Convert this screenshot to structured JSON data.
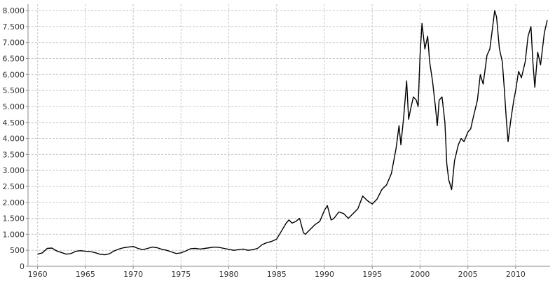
{
  "chart_data": {
    "type": "line",
    "title": "",
    "xlabel": "",
    "ylabel": "",
    "xlim": [
      1959,
      2013.6
    ],
    "ylim": [
      0,
      8200
    ],
    "grid": true,
    "legend": "none",
    "x_ticks": [
      1960,
      1965,
      1970,
      1975,
      1980,
      1985,
      1990,
      1995,
      2000,
      2005,
      2010
    ],
    "x_tick_labels": [
      "1960",
      "1965",
      "1970",
      "1975",
      "1980",
      "1985",
      "1990",
      "1995",
      "2000",
      "2005",
      "2010"
    ],
    "y_ticks": [
      0,
      500,
      1000,
      1500,
      2000,
      2500,
      3000,
      3500,
      4000,
      4500,
      5000,
      5500,
      6000,
      6500,
      7000,
      7500,
      8000
    ],
    "y_tick_labels": [
      "0",
      "500",
      "1.000",
      "1.500",
      "2.000",
      "2.500",
      "3.000",
      "3.500",
      "4.000",
      "4.500",
      "5.000",
      "5.500",
      "6.000",
      "6.500",
      "7.000",
      "7.500",
      "8.000"
    ],
    "line_color": "#000000",
    "series": [
      {
        "x": [
          1960.0,
          1960.5,
          1961.0,
          1961.5,
          1962.0,
          1962.5,
          1963.0,
          1963.5,
          1964.0,
          1964.5,
          1965.0,
          1965.5,
          1966.0,
          1966.5,
          1967.0,
          1967.5,
          1968.0,
          1968.5,
          1969.0,
          1969.5,
          1970.0,
          1970.5,
          1971.0,
          1971.5,
          1972.0,
          1972.5,
          1973.0,
          1973.5,
          1974.0,
          1974.5,
          1975.0,
          1975.5,
          1976.0,
          1976.5,
          1977.0,
          1977.5,
          1978.0,
          1978.5,
          1979.0,
          1979.5,
          1980.0,
          1980.5,
          1981.0,
          1981.5,
          1982.0,
          1982.5,
          1983.0,
          1983.5,
          1984.0,
          1984.5,
          1985.0,
          1985.5,
          1986.0,
          1986.3,
          1986.6,
          1987.0,
          1987.4,
          1987.8,
          1988.0,
          1988.5,
          1989.0,
          1989.5,
          1990.0,
          1990.3,
          1990.7,
          1991.0,
          1991.5,
          1992.0,
          1992.5,
          1993.0,
          1993.5,
          1994.0,
          1994.5,
          1995.0,
          1995.5,
          1996.0,
          1996.5,
          1997.0,
          1997.5,
          1997.8,
          1998.0,
          1998.3,
          1998.6,
          1998.8,
          1999.0,
          1999.3,
          1999.6,
          1999.8,
          2000.0,
          2000.2,
          2000.5,
          2000.8,
          2001.0,
          2001.3,
          2001.6,
          2001.8,
          2002.0,
          2002.3,
          2002.6,
          2002.8,
          2003.0,
          2003.3,
          2003.6,
          2004.0,
          2004.3,
          2004.6,
          2005.0,
          2005.3,
          2005.6,
          2006.0,
          2006.3,
          2006.6,
          2007.0,
          2007.3,
          2007.6,
          2007.8,
          2008.0,
          2008.3,
          2008.6,
          2008.8,
          2009.0,
          2009.2,
          2009.5,
          2009.8,
          2010.0,
          2010.3,
          2010.6,
          2011.0,
          2011.3,
          2011.6,
          2011.8,
          2012.0,
          2012.3,
          2012.6,
          2013.0,
          2013.3
        ],
        "y": [
          380,
          420,
          560,
          570,
          480,
          430,
          380,
          400,
          470,
          490,
          470,
          460,
          430,
          380,
          360,
          390,
          480,
          540,
          580,
          600,
          620,
          560,
          520,
          560,
          600,
          580,
          530,
          500,
          450,
          400,
          420,
          480,
          550,
          560,
          540,
          560,
          580,
          600,
          590,
          560,
          530,
          500,
          520,
          540,
          500,
          520,
          560,
          680,
          740,
          780,
          850,
          1100,
          1350,
          1450,
          1350,
          1400,
          1500,
          1050,
          1000,
          1150,
          1300,
          1400,
          1750,
          1900,
          1450,
          1500,
          1700,
          1650,
          1500,
          1650,
          1800,
          2200,
          2050,
          1950,
          2100,
          2400,
          2550,
          2900,
          3700,
          4400,
          3800,
          4700,
          5800,
          4600,
          4900,
          5300,
          5200,
          5000,
          6600,
          7600,
          6800,
          7200,
          6400,
          5800,
          5000,
          4400,
          5200,
          5300,
          4500,
          3200,
          2700,
          2400,
          3300,
          3800,
          4000,
          3900,
          4200,
          4300,
          4700,
          5200,
          6000,
          5700,
          6600,
          6800,
          7500,
          8000,
          7800,
          6800,
          6400,
          5600,
          4700,
          3900,
          4600,
          5200,
          5500,
          6100,
          5900,
          6400,
          7200,
          7500,
          6400,
          5600,
          6700,
          6300,
          7300,
          7700
        ]
      }
    ]
  }
}
